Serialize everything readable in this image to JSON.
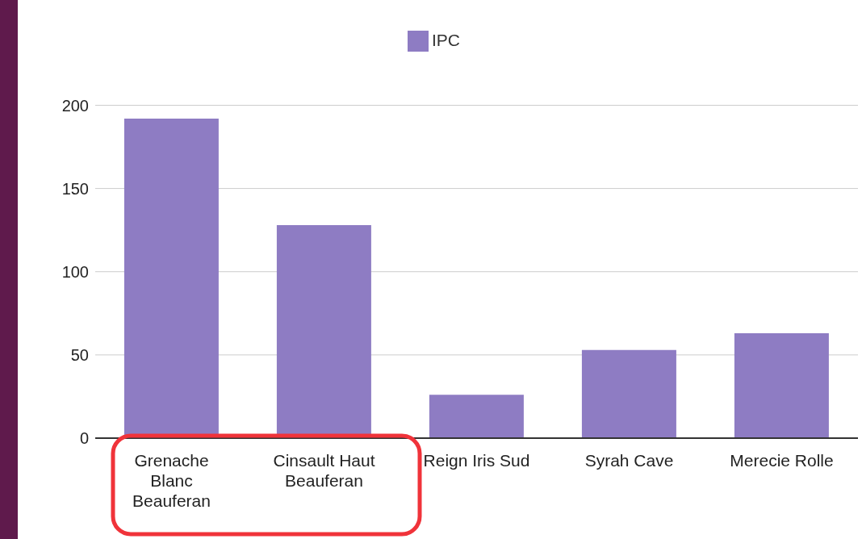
{
  "chart_data": {
    "type": "bar",
    "categories": [
      "Grenache Blanc Beauferan",
      "Cinsault Haut Beauferan",
      "Reign Iris Sud",
      "Syrah Cave",
      "Merecie Rolle"
    ],
    "series": [
      {
        "name": "IPC",
        "color": "#8e7cc3",
        "values": [
          192,
          128,
          26,
          53,
          63
        ]
      }
    ],
    "ylim": [
      0,
      200
    ],
    "yticks": [
      0,
      50,
      100,
      150,
      200
    ],
    "grid": "y",
    "legend": "top"
  }
}
